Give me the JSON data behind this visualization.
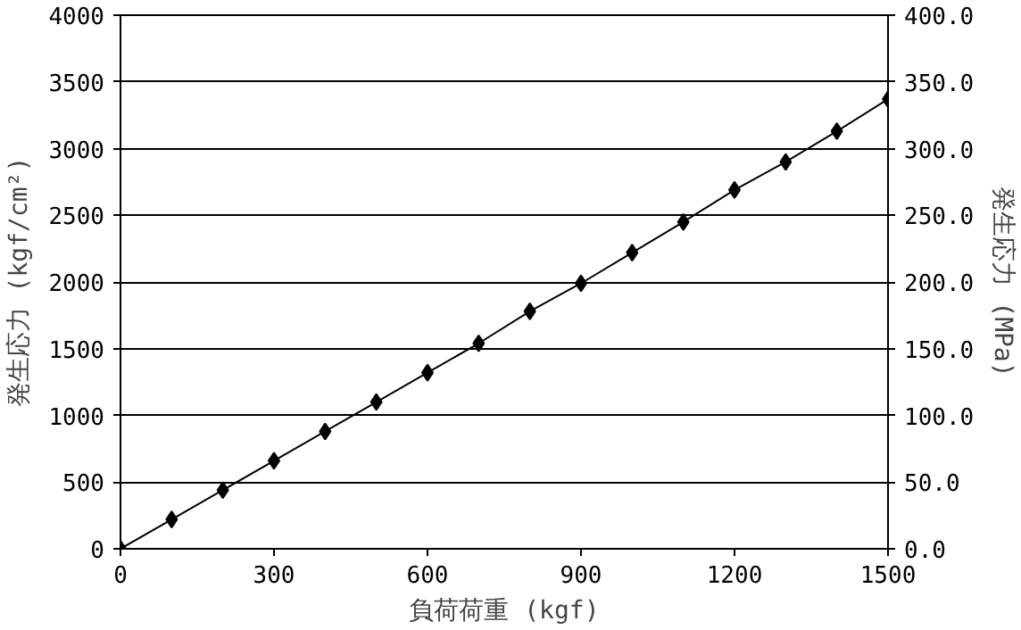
{
  "chart_data": {
    "type": "line",
    "xlabel": "負荷荷重 (kgf)",
    "ylabel": "発生応力 (kgf/cm²)",
    "y2label": "発生応力 (MPa)",
    "x": [
      0,
      100,
      200,
      300,
      400,
      500,
      600,
      700,
      800,
      900,
      1000,
      1100,
      1200,
      1300,
      1400,
      1500
    ],
    "series": [
      {
        "color": "#000000",
        "values": [
          0,
          220,
          440,
          660,
          880,
          1100,
          1320,
          1540,
          1780,
          1990,
          2220,
          2450,
          2690,
          2900,
          3130,
          3370
        ]
      }
    ],
    "xlim": [
      0,
      1500
    ],
    "xticks": [
      0,
      300,
      600,
      900,
      1200,
      1500
    ],
    "ylim": [
      0,
      4000
    ],
    "yticks": [
      0,
      500,
      1000,
      1500,
      2000,
      2500,
      3000,
      3500,
      4000
    ],
    "y2lim": [
      0,
      400
    ],
    "y2ticks": [
      {
        "value": 0,
        "label": "0.0"
      },
      {
        "value": 50,
        "label": "50.0"
      },
      {
        "value": 100,
        "label": "100.0"
      },
      {
        "value": 150,
        "label": "150.0"
      },
      {
        "value": 200,
        "label": "200.0"
      },
      {
        "value": 250,
        "label": "250.0"
      },
      {
        "value": 300,
        "label": "300.0"
      },
      {
        "value": 350,
        "label": "350.0"
      },
      {
        "value": 400,
        "label": "400.0"
      }
    ],
    "grid": "y",
    "marker": "diamond",
    "line_style": "solid"
  }
}
